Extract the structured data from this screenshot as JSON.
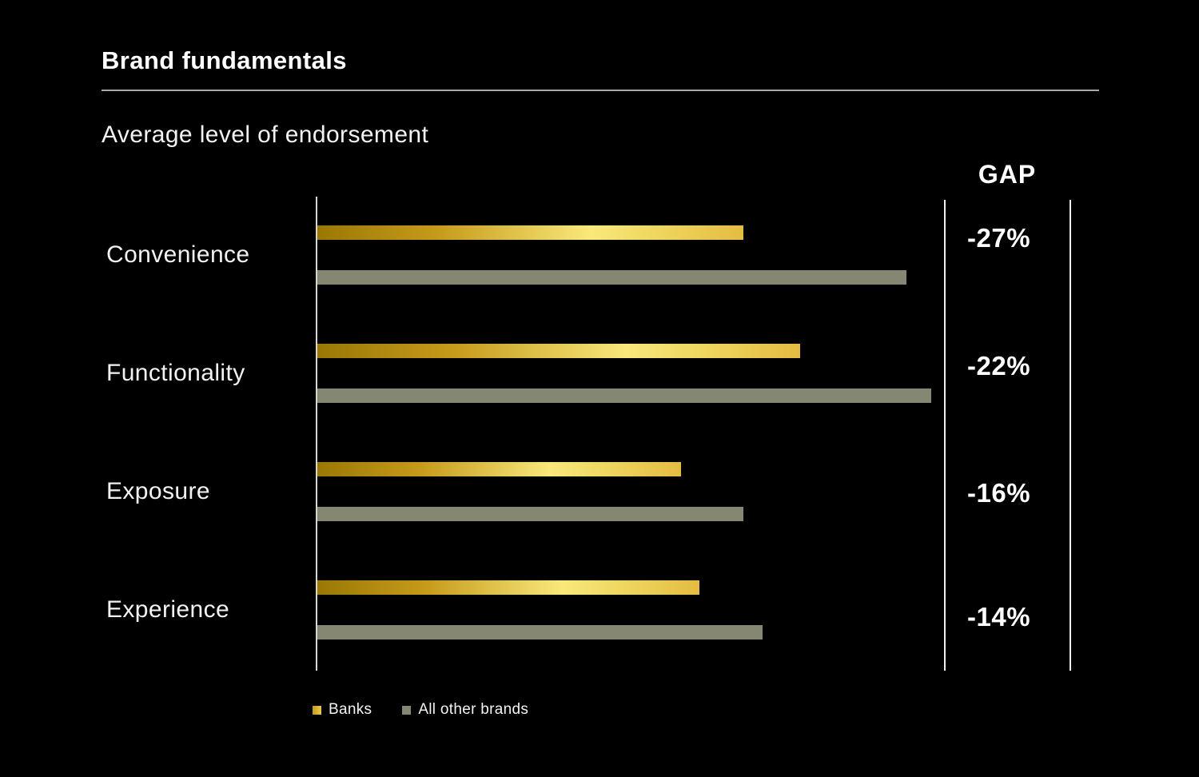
{
  "title": "Brand fundamentals",
  "subtitle": "Average level of endorsement",
  "colors": {
    "background": "#000000",
    "banks_gradient": [
      "#9a7805",
      "#f9e87b",
      "#e5bc42"
    ],
    "other_brands": "#858772",
    "axis_line": "#d8d8d0",
    "gap_lines": "#efefef",
    "text": "#ffffff"
  },
  "chart_data": {
    "type": "bar",
    "orientation": "horizontal",
    "title": "Brand fundamentals",
    "subtitle": "Average level of endorsement",
    "categories": [
      "Convenience",
      "Functionality",
      "Exposure",
      "Experience"
    ],
    "series": [
      {
        "name": "Banks",
        "values_pct_of_axis": [
          68,
          77,
          58,
          61
        ]
      },
      {
        "name": "All other brands",
        "values_pct_of_axis": [
          94,
          98,
          68,
          71
        ]
      }
    ],
    "gap_column": {
      "header": "GAP",
      "values": [
        "-27%",
        "-22%",
        "-16%",
        "-14%"
      ]
    },
    "axis_range_pct": [
      0,
      100
    ],
    "grid": false,
    "legend_position": "bottom"
  }
}
